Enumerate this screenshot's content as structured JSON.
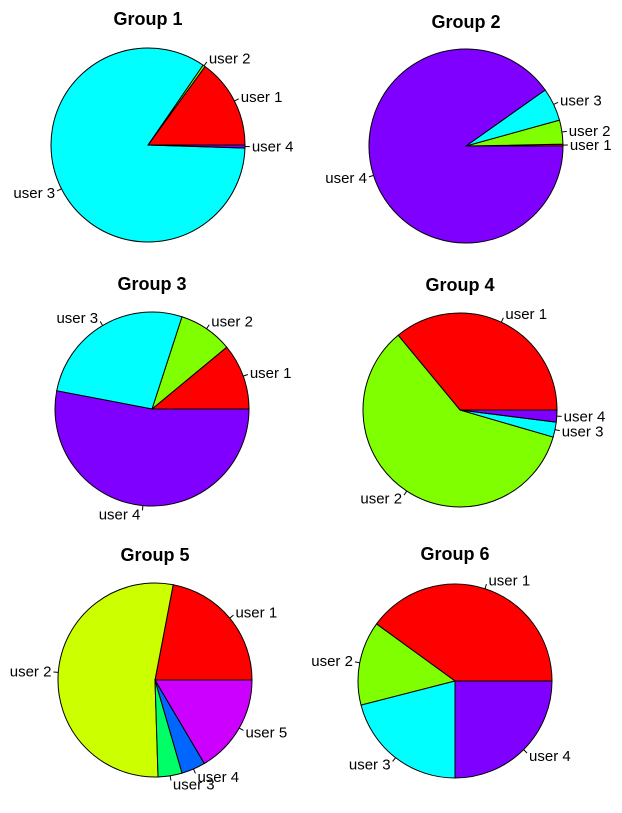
{
  "chart_data": [
    {
      "type": "pie",
      "title": "Group 1",
      "slices": [
        {
          "label": "user 1",
          "value": 15.0,
          "color": "#FF0000"
        },
        {
          "label": "user 2",
          "value": 0.4,
          "color": "#80FF00"
        },
        {
          "label": "user 3",
          "value": 84.1,
          "color": "#00FFFF"
        },
        {
          "label": "user 4",
          "value": 0.5,
          "color": "#8000FF"
        }
      ]
    },
    {
      "type": "pie",
      "title": "Group 2",
      "slices": [
        {
          "label": "user 1",
          "value": 0.3,
          "color": "#FF0000"
        },
        {
          "label": "user 2",
          "value": 4.0,
          "color": "#80FF00"
        },
        {
          "label": "user 3",
          "value": 5.5,
          "color": "#00FFFF"
        },
        {
          "label": "user 4",
          "value": 90.2,
          "color": "#8000FF"
        }
      ]
    },
    {
      "type": "pie",
      "title": "Group 3",
      "slices": [
        {
          "label": "user 1",
          "value": 11.0,
          "color": "#FF0000"
        },
        {
          "label": "user 2",
          "value": 9.0,
          "color": "#80FF00"
        },
        {
          "label": "user 3",
          "value": 27.0,
          "color": "#00FFFF"
        },
        {
          "label": "user 4",
          "value": 53.0,
          "color": "#8000FF"
        }
      ]
    },
    {
      "type": "pie",
      "title": "Group 4",
      "slices": [
        {
          "label": "user 1",
          "value": 36.0,
          "color": "#FF0000"
        },
        {
          "label": "user 2",
          "value": 59.5,
          "color": "#80FF00"
        },
        {
          "label": "user 3",
          "value": 2.5,
          "color": "#00FFFF"
        },
        {
          "label": "user 4",
          "value": 2.0,
          "color": "#8000FF"
        }
      ]
    },
    {
      "type": "pie",
      "title": "Group 5",
      "slices": [
        {
          "label": "user 1",
          "value": 22.0,
          "color": "#FF0000"
        },
        {
          "label": "user 2",
          "value": 53.5,
          "color": "#CCFF00"
        },
        {
          "label": "user 3",
          "value": 4.0,
          "color": "#00FF66"
        },
        {
          "label": "user 4",
          "value": 4.0,
          "color": "#0066FF"
        },
        {
          "label": "user 5",
          "value": 16.5,
          "color": "#CC00FF"
        }
      ]
    },
    {
      "type": "pie",
      "title": "Group 6",
      "slices": [
        {
          "label": "user 1",
          "value": 40.0,
          "color": "#FF0000"
        },
        {
          "label": "user 2",
          "value": 14.0,
          "color": "#80FF00"
        },
        {
          "label": "user 3",
          "value": 21.0,
          "color": "#00FFFF"
        },
        {
          "label": "user 4",
          "value": 25.0,
          "color": "#8000FF"
        }
      ]
    }
  ]
}
